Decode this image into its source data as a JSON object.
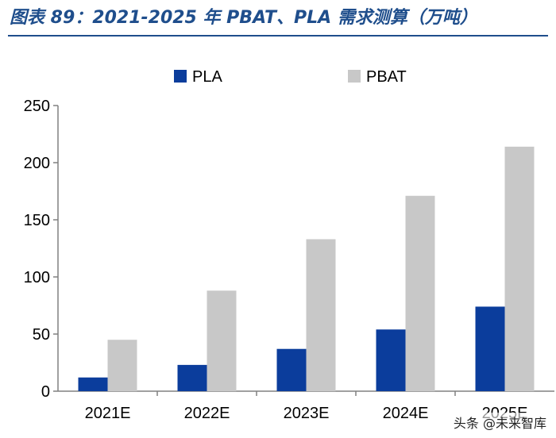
{
  "header": {
    "title": "图表 89：2021-2025 年 PBAT、PLA 需求测算（万吨）"
  },
  "colors": {
    "pla": "#0b3d9c",
    "pbat": "#c8c8c8",
    "axis": "#808080",
    "title": "#1f4e8c"
  },
  "chart_data": {
    "type": "bar",
    "title": "2021-2025 年 PBAT、PLA 需求测算（万吨）",
    "unit": "万吨",
    "categories": [
      "2021E",
      "2022E",
      "2023E",
      "2024E",
      "2025E"
    ],
    "series": [
      {
        "name": "PLA",
        "values": [
          12,
          23,
          37,
          54,
          74
        ]
      },
      {
        "name": "PBAT",
        "values": [
          45,
          88,
          133,
          171,
          214
        ]
      }
    ],
    "ylim": [
      0,
      250
    ],
    "yticks": [
      0,
      50,
      100,
      150,
      200,
      250
    ],
    "legend_position": "top-center",
    "grid": false
  },
  "watermark": {
    "text": "头条 @未来智库"
  }
}
